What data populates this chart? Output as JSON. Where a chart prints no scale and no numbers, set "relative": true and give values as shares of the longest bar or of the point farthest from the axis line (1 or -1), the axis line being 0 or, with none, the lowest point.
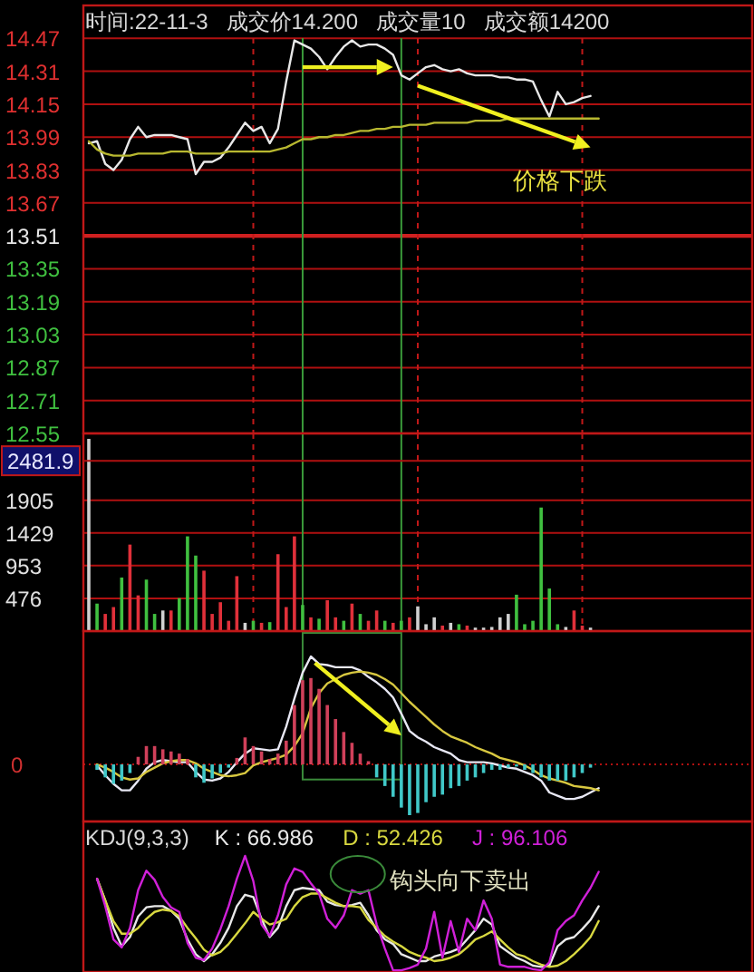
{
  "chart_data": [
    {
      "type": "line",
      "title": "时间:22-11-3   成交价14.200   成交量10   成交额14200",
      "categories": [
        null,
        null,
        null,
        null,
        null,
        null,
        null,
        null,
        null,
        null,
        null,
        null,
        null,
        null,
        null,
        null,
        null,
        null,
        null,
        null,
        null,
        null,
        null,
        null,
        null,
        null,
        null,
        null,
        null,
        null,
        null,
        null,
        null,
        null,
        null,
        null,
        null,
        null,
        null,
        null,
        null,
        null,
        null,
        null,
        null,
        null,
        null,
        null,
        null,
        null,
        null,
        null,
        null,
        null,
        null,
        null,
        null,
        null,
        null,
        null,
        null,
        null,
        null,
        null,
        null,
        null,
        null,
        null,
        null,
        null,
        null,
        null,
        null,
        null,
        null,
        null,
        null,
        null,
        null,
        null,
        null
      ],
      "series": [
        {
          "color": "#e8e8e8",
          "values": [
            13.96,
            13.97,
            13.86,
            13.83,
            13.88,
            13.98,
            14.04,
            13.99,
            14.0,
            14.0,
            14.0,
            13.99,
            13.98,
            13.81,
            13.87,
            13.87,
            13.89,
            13.94,
            14.0,
            14.06,
            14.02,
            14.04,
            13.96,
            14.03,
            14.26,
            14.46,
            14.44,
            14.42,
            14.38,
            14.32,
            14.38,
            14.43,
            14.46,
            14.43,
            14.44,
            14.44,
            14.42,
            14.39,
            14.29,
            14.27,
            14.3,
            14.33,
            14.34,
            14.32,
            14.31,
            14.32,
            14.3,
            14.29,
            14.29,
            14.29,
            14.28,
            14.28,
            14.27,
            14.27,
            14.26,
            14.17,
            14.09,
            14.21,
            14.15,
            14.16,
            14.18,
            14.19,
            null,
            null,
            null,
            null,
            null,
            null,
            null,
            null,
            null,
            null,
            null,
            null,
            null,
            null,
            null,
            null,
            null,
            null,
            null
          ]
        },
        {
          "color": "#b8b830",
          "values": [
            13.97,
            13.93,
            13.91,
            13.9,
            13.9,
            13.9,
            13.91,
            13.91,
            13.91,
            13.91,
            13.92,
            13.92,
            13.92,
            13.91,
            13.91,
            13.91,
            13.91,
            13.92,
            13.92,
            13.92,
            13.92,
            13.92,
            13.92,
            13.93,
            13.94,
            13.96,
            13.98,
            13.98,
            13.99,
            13.99,
            14.0,
            14.0,
            14.01,
            14.02,
            14.02,
            14.03,
            14.03,
            14.04,
            14.04,
            14.05,
            14.05,
            14.05,
            14.06,
            14.06,
            14.06,
            14.06,
            14.06,
            14.07,
            14.07,
            14.07,
            14.07,
            14.08,
            14.08,
            14.08,
            14.08,
            14.08,
            14.08,
            14.08,
            14.08,
            14.08,
            14.08,
            14.08,
            14.08,
            null,
            null,
            null,
            null,
            null,
            null,
            null,
            null,
            null,
            null,
            null,
            null,
            null,
            null,
            null,
            null,
            null,
            null
          ]
        }
      ],
      "ylim": [
        12.55,
        14.63
      ],
      "yticks": [
        14.47,
        14.31,
        14.15,
        13.99,
        13.83,
        13.67,
        13.51,
        13.35,
        13.19,
        13.03,
        12.87,
        12.71,
        12.55
      ],
      "grid": true,
      "tick_labels": "y",
      "ref_lines": [
        {
          "axis": "y",
          "value": 13.51,
          "color": "#d02020"
        }
      ],
      "annotations": [
        "价格下跌"
      ]
    },
    {
      "type": "bar",
      "categories": [
        null,
        null,
        null,
        null,
        null,
        null,
        null,
        null,
        null,
        null,
        null,
        null,
        null,
        null,
        null,
        null,
        null,
        null,
        null,
        null,
        null,
        null,
        null,
        null,
        null,
        null,
        null,
        null,
        null,
        null,
        null,
        null,
        null,
        null,
        null,
        null,
        null,
        null,
        null,
        null,
        null,
        null,
        null,
        null,
        null,
        null,
        null,
        null,
        null,
        null,
        null,
        null,
        null,
        null,
        null,
        null,
        null,
        null,
        null,
        null,
        null,
        null,
        null,
        null,
        null,
        null,
        null,
        null,
        null,
        null,
        null,
        null,
        null,
        null,
        null,
        null,
        null,
        null,
        null,
        null,
        null
      ],
      "values": [
        2800,
        400,
        250,
        350,
        780,
        1260,
        520,
        750,
        250,
        300,
        300,
        480,
        1380,
        1100,
        880,
        250,
        420,
        150,
        800,
        120,
        150,
        120,
        130,
        1120,
        350,
        1380,
        380,
        200,
        180,
        450,
        200,
        150,
        400,
        250,
        150,
        300,
        150,
        120,
        150,
        200,
        360,
        100,
        200,
        80,
        120,
        100,
        80,
        50,
        50,
        60,
        200,
        250,
        530,
        100,
        150,
        1800,
        620,
        100,
        60,
        300,
        80,
        50,
        null,
        null,
        null,
        null,
        null,
        null,
        null,
        null,
        null,
        null,
        null,
        null,
        null,
        null,
        null,
        null,
        null,
        null,
        null
      ],
      "colors": [
        "#d0d0d0",
        "#40c040",
        "#e0303a",
        "#e0303a",
        "#40c040",
        "#e0303a",
        "#e0303a",
        "#40c040",
        "#40c040",
        "#d0d0d0",
        "#e0303a",
        "#40c040",
        "#40c040",
        "#40c040",
        "#e0303a",
        "#e0303a",
        "#e0303a",
        "#e0303a",
        "#e0303a",
        "#d0d0d0",
        "#40c040",
        "#e0303a",
        "#40c040",
        "#e0303a",
        "#e0303a",
        "#e0303a",
        "#40c040",
        "#e0303a",
        "#40c040",
        "#e0303a",
        "#e0303a",
        "#40c040",
        "#e0303a",
        "#40c040",
        "#e0303a",
        "#e0303a",
        "#40c040",
        "#e0303a",
        "#40c040",
        "#e0303a",
        "#d0d0d0",
        "#d0d0d0",
        "#d0d0d0",
        "#e0303a",
        "#d0d0d0",
        "#40c040",
        "#e0303a",
        "#d0d0d0",
        "#d0d0d0",
        "#d0d0d0",
        "#d0d0d0",
        "#d0d0d0",
        "#40c040",
        "#40c040",
        "#40c040",
        "#40c040",
        "#40c040",
        "#40c040",
        "#d0d0d0",
        "#e0303a",
        "#e0303a",
        "#d0d0d0",
        null,
        null,
        null,
        null,
        null,
        null,
        null,
        null,
        null,
        null,
        null,
        null,
        null,
        null,
        null,
        null,
        null,
        null,
        null
      ],
      "ylim": [
        0,
        2880
      ],
      "yticks": [
        476,
        953,
        1429,
        1905
      ],
      "grid": true,
      "tick_labels": "y",
      "annotations": [
        {
          "text": "2481.9",
          "y": 2481.9
        }
      ]
    },
    {
      "type": "bar",
      "relative": true,
      "tick_labels": false,
      "categories": [
        null,
        null,
        null,
        null,
        null,
        null,
        null,
        null,
        null,
        null,
        null,
        null,
        null,
        null,
        null,
        null,
        null,
        null,
        null,
        null,
        null,
        null,
        null,
        null,
        null,
        null,
        null,
        null,
        null,
        null,
        null,
        null,
        null,
        null,
        null,
        null,
        null,
        null,
        null,
        null,
        null,
        null,
        null,
        null,
        null,
        null,
        null,
        null,
        null,
        null,
        null,
        null,
        null,
        null,
        null,
        null,
        null,
        null,
        null,
        null,
        null,
        null,
        null,
        null,
        null,
        null,
        null,
        null,
        null,
        null,
        null,
        null,
        null,
        null,
        null,
        null,
        null,
        null,
        null,
        null,
        null
      ],
      "series": [
        {
          "values": [
            null,
            -0.05,
            -0.12,
            -0.18,
            -0.15,
            -0.08,
            0.07,
            0.17,
            0.17,
            0.14,
            0.12,
            0.1,
            0.05,
            -0.12,
            -0.17,
            -0.13,
            -0.08,
            -0.03,
            0.06,
            0.25,
            0.17,
            0.12,
            0.05,
            0.1,
            0.22,
            0.55,
            0.78,
            0.8,
            0.7,
            0.55,
            0.42,
            0.3,
            0.2,
            0.1,
            0.03,
            -0.12,
            -0.2,
            -0.3,
            -0.4,
            -0.47,
            -0.45,
            -0.35,
            -0.3,
            -0.28,
            -0.22,
            -0.2,
            -0.15,
            -0.12,
            -0.08,
            -0.05,
            -0.05,
            -0.03,
            -0.02,
            -0.05,
            -0.08,
            -0.12,
            -0.15,
            -0.15,
            -0.15,
            -0.12,
            -0.08,
            -0.03,
            null,
            null,
            null,
            null,
            null,
            null,
            null,
            null,
            null,
            null,
            null,
            null,
            null,
            null,
            null,
            null,
            null,
            null,
            null
          ],
          "colors": [
            null,
            "#40c8c8",
            "#40c8c8",
            "#40c8c8",
            "#40c8c8",
            "#40c8c8",
            "#d0405a",
            "#d0405a",
            "#d0405a",
            "#d0405a",
            "#d0405a",
            "#d0405a",
            "#d0405a",
            "#40c8c8",
            "#40c8c8",
            "#40c8c8",
            "#40c8c8",
            "#40c8c8",
            "#d0405a",
            "#d0405a",
            "#d0405a",
            "#d0405a",
            "#d0405a",
            "#d0405a",
            "#d0405a",
            "#d0405a",
            "#d0405a",
            "#d0405a",
            "#d0405a",
            "#d0405a",
            "#d0405a",
            "#d0405a",
            "#d0405a",
            "#d0405a",
            "#d0405a",
            "#40c8c8",
            "#40c8c8",
            "#40c8c8",
            "#40c8c8",
            "#40c8c8",
            "#40c8c8",
            "#40c8c8",
            "#40c8c8",
            "#40c8c8",
            "#40c8c8",
            "#40c8c8",
            "#40c8c8",
            "#40c8c8",
            "#40c8c8",
            "#40c8c8",
            "#40c8c8",
            "#40c8c8",
            "#40c8c8",
            "#40c8c8",
            "#40c8c8",
            "#40c8c8",
            "#40c8c8",
            "#40c8c8",
            "#40c8c8",
            "#40c8c8",
            "#40c8c8",
            "#40c8c8",
            null,
            null,
            null,
            null,
            null,
            null,
            null,
            null,
            null,
            null,
            null,
            null,
            null,
            null,
            null,
            null,
            null,
            null,
            null
          ]
        },
        {
          "type": "line",
          "color": "#e8e8f4",
          "values": [
            null,
            -0.01,
            -0.1,
            -0.18,
            -0.24,
            -0.24,
            -0.15,
            -0.04,
            0.02,
            0.04,
            0.03,
            0.02,
            0.02,
            -0.07,
            -0.14,
            -0.15,
            -0.13,
            -0.07,
            0.02,
            0.1,
            0.15,
            0.14,
            0.13,
            0.14,
            0.35,
            0.61,
            0.85,
            1.0,
            0.93,
            0.92,
            0.9,
            0.9,
            0.9,
            0.87,
            0.81,
            0.76,
            0.7,
            0.62,
            0.47,
            0.31,
            0.25,
            0.21,
            0.16,
            0.13,
            0.1,
            0.04,
            0.02,
            0.02,
            0.02,
            0.01,
            -0.01,
            -0.03,
            -0.04,
            -0.07,
            -0.1,
            -0.15,
            -0.26,
            -0.29,
            -0.32,
            -0.32,
            -0.3,
            -0.26,
            -0.22,
            null,
            null,
            null,
            null,
            null,
            null,
            null,
            null,
            null,
            null,
            null,
            null,
            null,
            null,
            null,
            null,
            null,
            null
          ]
        },
        {
          "type": "line",
          "color": "#d8c840",
          "values": [
            null,
            0.0,
            -0.03,
            -0.07,
            -0.12,
            -0.14,
            -0.13,
            -0.07,
            -0.03,
            0.01,
            0.03,
            0.04,
            0.04,
            0.01,
            -0.04,
            -0.07,
            -0.1,
            -0.11,
            -0.1,
            -0.08,
            -0.01,
            0.02,
            0.04,
            0.06,
            0.09,
            0.17,
            0.29,
            0.52,
            0.66,
            0.75,
            0.79,
            0.83,
            0.85,
            0.86,
            0.85,
            0.83,
            0.79,
            0.74,
            0.66,
            0.58,
            0.51,
            0.44,
            0.37,
            0.31,
            0.26,
            0.23,
            0.2,
            0.16,
            0.13,
            0.1,
            0.06,
            0.04,
            0.02,
            -0.01,
            -0.05,
            -0.1,
            -0.13,
            -0.15,
            -0.17,
            -0.2,
            -0.21,
            -0.22,
            -0.24,
            null,
            null,
            null,
            null,
            null,
            null,
            null,
            null,
            null,
            null,
            null,
            null,
            null,
            null,
            null,
            null,
            null,
            null
          ]
        }
      ],
      "ref_lines": [
        {
          "axis": "y",
          "value": 0,
          "color": "#b01010",
          "line_style": "dotted"
        }
      ],
      "annotations": [
        "0"
      ]
    },
    {
      "type": "line",
      "relative": true,
      "tick_labels": false,
      "title": "KDJ(9,3,3)",
      "legend": "top left",
      "categories": [
        null,
        null,
        null,
        null,
        null,
        null,
        null,
        null,
        null,
        null,
        null,
        null,
        null,
        null,
        null,
        null,
        null,
        null,
        null,
        null,
        null,
        null,
        null,
        null,
        null,
        null,
        null,
        null,
        null,
        null,
        null,
        null,
        null,
        null,
        null,
        null,
        null,
        null,
        null,
        null,
        null,
        null,
        null,
        null,
        null,
        null,
        null,
        null,
        null,
        null,
        null,
        null,
        null,
        null,
        null,
        null,
        null,
        null,
        null,
        null,
        null,
        null,
        null,
        null,
        null,
        null,
        null,
        null,
        null,
        null,
        null,
        null,
        null,
        null,
        null,
        null,
        null,
        null,
        null,
        null,
        null
      ],
      "series": [
        {
          "name": "K : 66.986",
          "color": "#e8e8e8",
          "values": [
            null,
            0.8,
            0.61,
            0.37,
            0.21,
            0.29,
            0.47,
            0.55,
            0.56,
            0.56,
            0.52,
            0.45,
            0.27,
            0.14,
            0.08,
            0.14,
            0.24,
            0.37,
            0.56,
            0.66,
            0.64,
            0.45,
            0.29,
            0.37,
            0.56,
            0.7,
            0.72,
            0.71,
            0.7,
            0.6,
            0.57,
            0.56,
            0.57,
            0.59,
            0.48,
            0.35,
            0.27,
            0.23,
            0.14,
            0.11,
            0.08,
            0.08,
            0.12,
            0.14,
            0.16,
            0.19,
            0.27,
            0.35,
            0.45,
            0.4,
            0.21,
            0.16,
            0.11,
            0.08,
            0.04,
            0.03,
            0.04,
            0.21,
            0.27,
            0.29,
            0.36,
            0.44,
            0.56,
            null,
            null,
            null,
            null,
            null,
            null,
            null,
            null,
            null,
            null,
            null,
            null,
            null,
            null,
            null,
            null,
            null,
            null
          ]
        },
        {
          "name": "D : 52.426",
          "color": "#d8d840",
          "values": [
            null,
            0.8,
            0.61,
            0.43,
            0.32,
            0.32,
            0.37,
            0.45,
            0.51,
            0.53,
            0.52,
            0.47,
            0.37,
            0.28,
            0.18,
            0.13,
            0.16,
            0.23,
            0.32,
            0.41,
            0.51,
            0.45,
            0.4,
            0.42,
            0.45,
            0.56,
            0.64,
            0.67,
            0.67,
            0.63,
            0.59,
            0.56,
            0.56,
            0.55,
            0.44,
            0.37,
            0.3,
            0.25,
            0.21,
            0.16,
            0.13,
            0.11,
            0.08,
            0.09,
            0.11,
            0.14,
            0.2,
            0.27,
            0.3,
            0.34,
            0.27,
            0.2,
            0.14,
            0.12,
            0.08,
            0.05,
            0.03,
            0.04,
            0.08,
            0.14,
            0.21,
            0.29,
            0.43,
            null,
            null,
            null,
            null,
            null,
            null,
            null,
            null,
            null,
            null,
            null,
            null,
            null,
            null,
            null,
            null,
            null,
            null
          ]
        },
        {
          "name": "J : 96.106",
          "color": "#d020d8",
          "values": [
            null,
            0.8,
            0.56,
            0.27,
            0.2,
            0.37,
            0.7,
            0.87,
            0.79,
            0.64,
            0.55,
            0.51,
            0.24,
            0.11,
            0.09,
            0.19,
            0.36,
            0.56,
            0.8,
            1.0,
            0.78,
            0.4,
            0.3,
            0.48,
            0.75,
            0.89,
            0.86,
            0.76,
            0.67,
            0.45,
            0.37,
            0.48,
            0.7,
            0.67,
            0.7,
            0.4,
            0.19,
            0.0,
            0.0,
            0.02,
            0.05,
            0.19,
            0.51,
            0.11,
            0.43,
            0.16,
            0.45,
            0.35,
            0.61,
            0.45,
            0.05,
            0.03,
            0.03,
            0.03,
            0.01,
            0.0,
            0.07,
            0.35,
            0.43,
            0.48,
            0.61,
            0.72,
            0.86,
            null,
            null,
            null,
            null,
            null,
            null,
            null,
            null,
            null,
            null,
            null,
            null,
            null,
            null,
            null,
            null,
            null,
            null
          ]
        }
      ],
      "annotations": [
        "钩头向下卖出"
      ]
    }
  ]
}
